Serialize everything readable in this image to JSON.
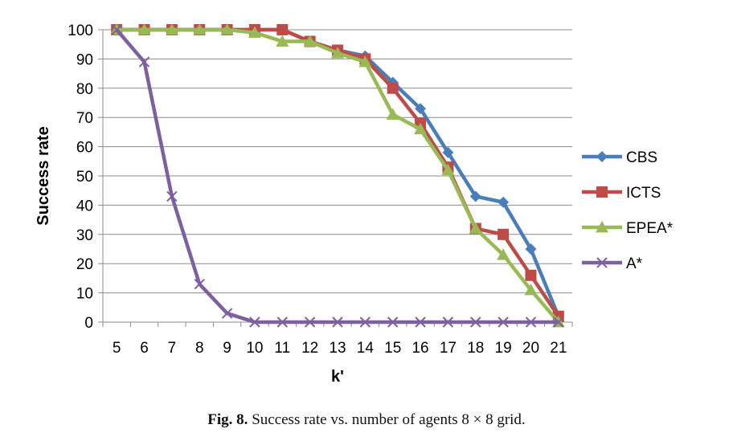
{
  "chart_data": {
    "type": "line",
    "title": "",
    "xlabel": "k'",
    "ylabel": "Success rate",
    "x": [
      5,
      6,
      7,
      8,
      9,
      10,
      11,
      12,
      13,
      14,
      15,
      16,
      17,
      18,
      19,
      20,
      21
    ],
    "ylim": [
      0,
      100
    ],
    "yticks": [
      0,
      10,
      20,
      30,
      40,
      50,
      60,
      70,
      80,
      90,
      100
    ],
    "grid": "horizontal",
    "legend_position": "right",
    "series": [
      {
        "name": "CBS",
        "color": "#4A7EBB",
        "marker": "diamond",
        "values": [
          100,
          100,
          100,
          100,
          100,
          100,
          100,
          96,
          93,
          91,
          82,
          73,
          58,
          43,
          41,
          25,
          2
        ]
      },
      {
        "name": "ICTS",
        "color": "#BE4B48",
        "marker": "square",
        "values": [
          100,
          100,
          100,
          100,
          100,
          100,
          100,
          96,
          93,
          90,
          80,
          68,
          53,
          32,
          30,
          16,
          2
        ]
      },
      {
        "name": "EPEA*",
        "color": "#98B954",
        "marker": "triangle",
        "values": [
          100,
          100,
          100,
          100,
          100,
          99,
          96,
          96,
          92,
          89,
          71,
          66,
          52,
          32,
          23,
          11,
          0
        ]
      },
      {
        "name": "A*",
        "color": "#7D60A0",
        "marker": "x",
        "values": [
          100,
          89,
          43,
          13,
          3,
          0,
          0,
          0,
          0,
          0,
          0,
          0,
          0,
          0,
          0,
          0,
          0
        ]
      }
    ]
  },
  "caption": {
    "label": "Fig. 8.",
    "text": "Success rate vs. number of agents 8 × 8 grid."
  }
}
